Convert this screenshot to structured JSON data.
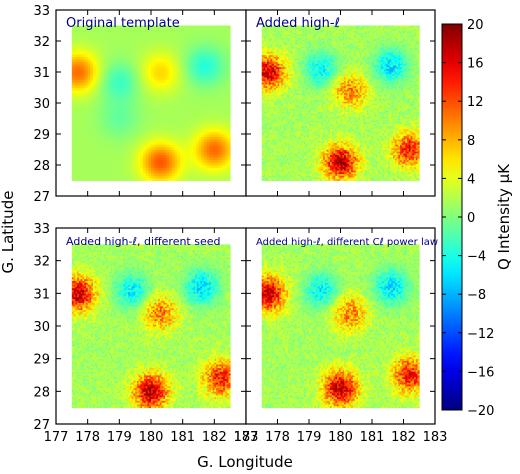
{
  "figure": {
    "x_axis_label": "G. Longitude",
    "y_axis_label": "G. Latitude",
    "colorbar_label": "Q Intensity μK",
    "colorbar_ticks": [
      "20",
      "16",
      "12",
      "8",
      "4",
      "0",
      "−4",
      "−8",
      "−12",
      "−16",
      "−20"
    ]
  },
  "chart_data": [
    {
      "type": "heatmap",
      "title": "Original template",
      "xlim": [
        177,
        183
      ],
      "ylim": [
        27,
        33
      ],
      "data_extent": {
        "x": [
          177.5,
          182.5
        ],
        "y": [
          27.5,
          32.5
        ]
      },
      "x_ticks": [
        "177",
        "178",
        "179",
        "180",
        "181",
        "182",
        "183"
      ],
      "y_ticks": [
        "27",
        "28",
        "29",
        "30",
        "31",
        "32",
        "33"
      ],
      "variant": "smooth",
      "features": [
        {
          "x": 177.7,
          "y": 31.0,
          "value": 11
        },
        {
          "x": 179.0,
          "y": 30.7,
          "value": -5
        },
        {
          "x": 180.3,
          "y": 31.0,
          "value": 6
        },
        {
          "x": 181.7,
          "y": 31.2,
          "value": -6
        },
        {
          "x": 179.0,
          "y": 29.5,
          "value": -3
        },
        {
          "x": 180.3,
          "y": 28.1,
          "value": 12
        },
        {
          "x": 182.0,
          "y": 28.5,
          "value": 11
        }
      ]
    },
    {
      "type": "heatmap",
      "title": "Added high-ℓ",
      "xlim": [
        177,
        183
      ],
      "ylim": [
        27,
        33
      ],
      "data_extent": {
        "x": [
          177.5,
          182.5
        ],
        "y": [
          27.5,
          32.5
        ]
      },
      "x_ticks": [
        "177",
        "178",
        "179",
        "180",
        "181",
        "182",
        "183"
      ],
      "y_ticks": [
        "27",
        "28",
        "29",
        "30",
        "31",
        "32",
        "33"
      ],
      "variant": "high-ell",
      "features": [
        {
          "x": 177.7,
          "y": 31.0,
          "value": 18
        },
        {
          "x": 179.4,
          "y": 31.1,
          "value": -8
        },
        {
          "x": 180.3,
          "y": 30.4,
          "value": 10
        },
        {
          "x": 181.6,
          "y": 31.2,
          "value": -9
        },
        {
          "x": 180.0,
          "y": 28.1,
          "value": 19
        },
        {
          "x": 182.2,
          "y": 28.5,
          "value": 15
        }
      ]
    },
    {
      "type": "heatmap",
      "title": "Added high-ℓ, different seed",
      "xlim": [
        177,
        183
      ],
      "ylim": [
        27,
        33
      ],
      "data_extent": {
        "x": [
          177.5,
          182.5
        ],
        "y": [
          27.5,
          32.5
        ]
      },
      "x_ticks": [
        "177",
        "178",
        "179",
        "180",
        "181",
        "182",
        "183"
      ],
      "y_ticks": [
        "27",
        "28",
        "29",
        "30",
        "31",
        "32",
        "33"
      ],
      "variant": "high-ell-seed",
      "features": [
        {
          "x": 177.7,
          "y": 31.0,
          "value": 18
        },
        {
          "x": 179.4,
          "y": 31.1,
          "value": -8
        },
        {
          "x": 180.3,
          "y": 30.4,
          "value": 10
        },
        {
          "x": 181.6,
          "y": 31.2,
          "value": -9
        },
        {
          "x": 180.0,
          "y": 28.0,
          "value": 19
        },
        {
          "x": 182.2,
          "y": 28.4,
          "value": 15
        }
      ]
    },
    {
      "type": "heatmap",
      "title": "Added high-ℓ, different Cℓ power law",
      "xlim": [
        177,
        183
      ],
      "ylim": [
        27,
        33
      ],
      "data_extent": {
        "x": [
          177.5,
          182.5
        ],
        "y": [
          27.5,
          32.5
        ]
      },
      "x_ticks": [
        "177",
        "178",
        "179",
        "180",
        "181",
        "182",
        "183"
      ],
      "y_ticks": [
        "27",
        "28",
        "29",
        "30",
        "31",
        "32",
        "33"
      ],
      "variant": "high-ell-powerlaw",
      "features": [
        {
          "x": 177.7,
          "y": 31.0,
          "value": 18
        },
        {
          "x": 179.4,
          "y": 31.1,
          "value": -8
        },
        {
          "x": 180.3,
          "y": 30.4,
          "value": 10
        },
        {
          "x": 181.6,
          "y": 31.2,
          "value": -9
        },
        {
          "x": 180.0,
          "y": 28.1,
          "value": 19
        },
        {
          "x": 182.2,
          "y": 28.5,
          "value": 15
        }
      ]
    }
  ],
  "colorbar": {
    "vmin": -20,
    "vmax": 20,
    "colormap": "jet",
    "colors": [
      "#00007f",
      "#0000ff",
      "#0080ff",
      "#00ffff",
      "#80ff80",
      "#ffff00",
      "#ff8000",
      "#ff0000",
      "#7f0000"
    ]
  },
  "colors": {
    "title_text": "#00008b",
    "background_value": "#7fe97f"
  }
}
